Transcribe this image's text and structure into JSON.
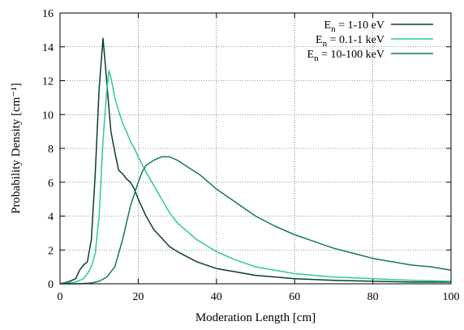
{
  "chart_data": {
    "type": "line",
    "xlabel": "Moderation Length [cm]",
    "ylabel": "Probability Density [cm⁻¹]",
    "xlim": [
      0,
      100
    ],
    "ylim": [
      0,
      16
    ],
    "xticks": [
      0,
      20,
      40,
      60,
      80,
      100
    ],
    "yticks": [
      0,
      2,
      4,
      6,
      8,
      10,
      12,
      14,
      16
    ],
    "grid": true,
    "legend_position": "top-right",
    "series": [
      {
        "name": "E_n = 1-10 eV",
        "label_base": "E",
        "label_sub": "n",
        "label_rest": " = 1-10 eV",
        "color": "#0b3d2c",
        "x": [
          0,
          2,
          4,
          5,
          6,
          7,
          8,
          9,
          10,
          10.5,
          11,
          11.5,
          12,
          13,
          14,
          15,
          16,
          17,
          18,
          19,
          20,
          22,
          24,
          26,
          28,
          30,
          35,
          40,
          45,
          50,
          55,
          60,
          65,
          70,
          80,
          90,
          100
        ],
        "y": [
          0,
          0.1,
          0.3,
          0.8,
          1.1,
          1.3,
          2.6,
          6.5,
          11.5,
          13.0,
          14.5,
          13.2,
          11.8,
          9.0,
          7.8,
          6.7,
          6.5,
          6.2,
          6.0,
          5.6,
          5.0,
          4.0,
          3.2,
          2.7,
          2.2,
          1.9,
          1.3,
          0.9,
          0.7,
          0.5,
          0.4,
          0.3,
          0.25,
          0.2,
          0.15,
          0.1,
          0.1
        ]
      },
      {
        "name": "E_n = 0.1-1 keV",
        "label_base": "E",
        "label_sub": "n",
        "label_rest": " = 0.1-1 keV",
        "color": "#2ec99a",
        "x": [
          0,
          2,
          4,
          6,
          7,
          8,
          9,
          10,
          11,
          12,
          12.5,
          13,
          14,
          15,
          16,
          17,
          18,
          19,
          20,
          22,
          24,
          26,
          28,
          30,
          32,
          35,
          40,
          45,
          50,
          55,
          60,
          65,
          70,
          80,
          90,
          100
        ],
        "y": [
          0,
          0.05,
          0.1,
          0.3,
          0.6,
          1.0,
          1.8,
          4.0,
          8.5,
          11.5,
          12.6,
          12.2,
          11.0,
          10.2,
          9.5,
          9.0,
          8.4,
          8.0,
          7.5,
          6.6,
          5.8,
          5.0,
          4.2,
          3.6,
          3.2,
          2.6,
          1.9,
          1.4,
          1.0,
          0.8,
          0.6,
          0.5,
          0.4,
          0.3,
          0.2,
          0.15
        ]
      },
      {
        "name": "E_n = 10-100 keV",
        "label_base": "E",
        "label_sub": "n",
        "label_rest": " = 10-100 keV",
        "color": "#137a58",
        "x": [
          0,
          5,
          8,
          10,
          12,
          14,
          15,
          16,
          17,
          18,
          19,
          20,
          21,
          22,
          24,
          26,
          28,
          30,
          32,
          34,
          36,
          38,
          40,
          45,
          50,
          55,
          60,
          65,
          70,
          75,
          80,
          85,
          90,
          95,
          100
        ],
        "y": [
          0,
          0,
          0.05,
          0.15,
          0.4,
          1.0,
          1.8,
          2.6,
          3.6,
          4.6,
          5.3,
          6.0,
          6.6,
          7.0,
          7.3,
          7.5,
          7.5,
          7.3,
          7.0,
          6.7,
          6.4,
          6.0,
          5.6,
          4.8,
          4.0,
          3.4,
          2.9,
          2.5,
          2.1,
          1.8,
          1.5,
          1.3,
          1.1,
          1.0,
          0.8
        ]
      }
    ]
  }
}
